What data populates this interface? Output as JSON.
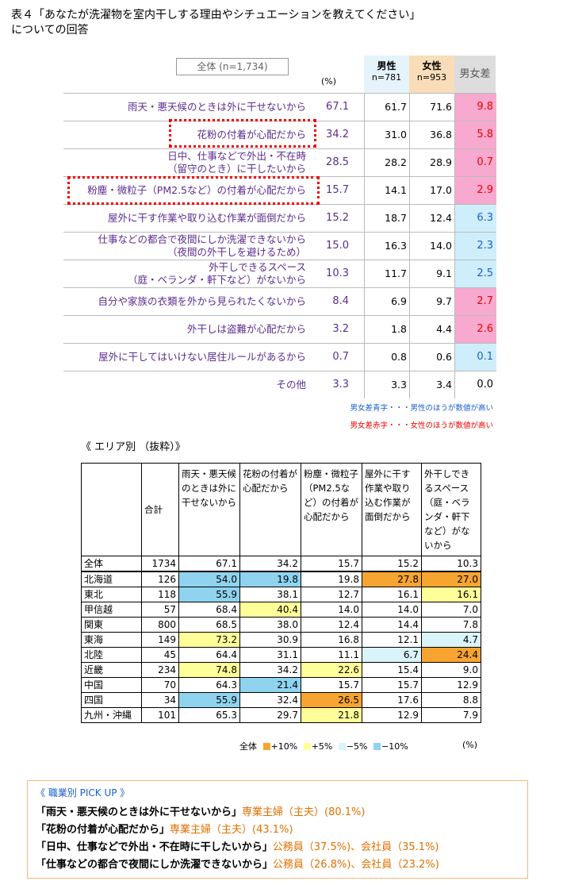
{
  "title_line1": "表４「あなたが洗濯物を室内干しする理由やシチュエーションを教えてください」",
  "title_line2": "についての回答",
  "table1": {
    "all_label": "全体 (n=1,734)",
    "pct_label": "(%)",
    "male_label": "男性",
    "male_n": "n=781",
    "female_label": "女性",
    "female_n": "n=953",
    "diff_label": "男女差",
    "rows": [
      {
        "l1": "雨天・悪天候のときは外に干せないから",
        "l2": "",
        "all": "67.1",
        "m": "61.7",
        "f": "71.6",
        "d": "9.8",
        "sign": "pos"
      },
      {
        "l1": "花粉の付着が心配だから",
        "l2": "",
        "all": "34.2",
        "m": "31.0",
        "f": "36.8",
        "d": "5.8",
        "sign": "pos"
      },
      {
        "l1": "日中、仕事などで外出・不在時",
        "l2": "（留守のとき）に干したいから",
        "all": "28.5",
        "m": "28.2",
        "f": "28.9",
        "d": "0.7",
        "sign": "pos"
      },
      {
        "l1": "粉塵・微粒子（PM2.5など）の付着が心配だから",
        "l2": "",
        "all": "15.7",
        "m": "14.1",
        "f": "17.0",
        "d": "2.9",
        "sign": "pos"
      },
      {
        "l1": "屋外に干す作業や取り込む作業が面倒だから",
        "l2": "",
        "all": "15.2",
        "m": "18.7",
        "f": "12.4",
        "d": "6.3",
        "sign": "neg"
      },
      {
        "l1": "仕事などの都合で夜間にしか洗濯できないから",
        "l2": "（夜間の外干しを避けるため）",
        "all": "15.0",
        "m": "16.3",
        "f": "14.0",
        "d": "2.3",
        "sign": "neg"
      },
      {
        "l1": "外干しできるスペース",
        "l2": "（庭・ベランダ・軒下など）がないから",
        "all": "10.3",
        "m": "11.7",
        "f": "9.1",
        "d": "2.5",
        "sign": "neg"
      },
      {
        "l1": "自分や家族の衣類を外から見られたくないから",
        "l2": "",
        "all": "8.4",
        "m": "6.9",
        "f": "9.7",
        "d": "2.7",
        "sign": "pos"
      },
      {
        "l1": "外干しは盗難が心配だから",
        "l2": "",
        "all": "3.2",
        "m": "1.8",
        "f": "4.4",
        "d": "2.6",
        "sign": "pos"
      },
      {
        "l1": "屋外に干してはいけない居住ルールがあるから",
        "l2": "",
        "all": "0.7",
        "m": "0.8",
        "f": "0.6",
        "d": "0.1",
        "sign": "neg"
      },
      {
        "l1": "その他",
        "l2": "",
        "all": "3.3",
        "m": "3.3",
        "f": "3.4",
        "d": "0.0",
        "sign": "zero"
      }
    ],
    "note_blue": "男女差青字・・・男性のほうが数値が高い",
    "note_red": "男女差赤字・・・女性のほうが数値が高い",
    "colors": {
      "pos_bg": "#f8a9cf",
      "pos_text": "#ee0000",
      "neg_bg": "#cfeefb",
      "neg_text": "#1a5fc9",
      "label_text": "#5b2d8e"
    }
  },
  "area_title": "《 エリア別 （抜粋）》",
  "table2": {
    "headers": [
      "合計",
      "雨天・悪天候のときは外に干せないから",
      "花粉の付着が心配だから",
      "粉塵・微粒子（PM2.5など）の付着が心配だから",
      "屋外に干す作業や取り込む作業が面倒だから",
      "外干しできるスペース（庭・ベランダ・軒下など）がないから"
    ],
    "rows": [
      {
        "name": "全体",
        "vals": [
          "1734",
          "67.1",
          "34.2",
          "15.7",
          "15.2",
          "10.3"
        ],
        "cls": [
          "",
          "",
          "",
          "",
          "",
          ""
        ]
      },
      {
        "name": "北海道",
        "vals": [
          "126",
          "54.0",
          "19.8",
          "19.8",
          "27.8",
          "27.0"
        ],
        "cls": [
          "",
          "blue",
          "blue",
          "",
          "org",
          "org"
        ]
      },
      {
        "name": "東北",
        "vals": [
          "118",
          "55.9",
          "38.1",
          "12.7",
          "16.1",
          "16.1"
        ],
        "cls": [
          "",
          "blue",
          "",
          "",
          "",
          "yel"
        ]
      },
      {
        "name": "甲信越",
        "vals": [
          "57",
          "68.4",
          "40.4",
          "14.0",
          "14.0",
          "7.0"
        ],
        "cls": [
          "",
          "",
          "yel",
          "",
          "",
          ""
        ]
      },
      {
        "name": "関東",
        "vals": [
          "800",
          "68.5",
          "38.0",
          "12.4",
          "14.4",
          "7.8"
        ],
        "cls": [
          "",
          "",
          "",
          "",
          "",
          ""
        ]
      },
      {
        "name": "東海",
        "vals": [
          "149",
          "73.2",
          "30.9",
          "16.8",
          "12.1",
          "4.7"
        ],
        "cls": [
          "",
          "yel",
          "",
          "",
          "",
          "lb"
        ]
      },
      {
        "name": "北陸",
        "vals": [
          "45",
          "64.4",
          "31.1",
          "11.1",
          "6.7",
          "24.4"
        ],
        "cls": [
          "",
          "",
          "",
          "",
          "lb",
          "org"
        ]
      },
      {
        "name": "近畿",
        "vals": [
          "234",
          "74.8",
          "34.2",
          "22.6",
          "15.4",
          "9.0"
        ],
        "cls": [
          "",
          "yel",
          "",
          "yel",
          "",
          ""
        ]
      },
      {
        "name": "中国",
        "vals": [
          "70",
          "64.3",
          "21.4",
          "15.7",
          "15.7",
          "12.9"
        ],
        "cls": [
          "",
          "",
          "blue",
          "",
          "",
          ""
        ]
      },
      {
        "name": "四国",
        "vals": [
          "34",
          "55.9",
          "32.4",
          "26.5",
          "17.6",
          "8.8"
        ],
        "cls": [
          "",
          "blue",
          "",
          "org",
          "",
          ""
        ]
      },
      {
        "name": "九州・沖縄",
        "vals": [
          "101",
          "65.3",
          "29.7",
          "21.8",
          "12.9",
          "7.9"
        ],
        "cls": [
          "",
          "",
          "",
          "yel",
          "",
          ""
        ]
      }
    ],
    "legend": {
      "prefix": "全体",
      "plus10": "+10%",
      "plus5": "+5%",
      "minus5": "−5%",
      "minus10": "−10%",
      "unit": "(%)"
    },
    "colors": {
      "blue": "#8fd3ef",
      "yel": "#ffff99",
      "org": "#f7a431",
      "lb": "#d9f4fb"
    }
  },
  "pickup": {
    "title": "《 職業別 PICK UP 》",
    "lines": [
      {
        "q": "「雨天・悪天候のときは外に干せないから」",
        "a": "専業主婦（主夫）",
        "p": "(80.1%)"
      },
      {
        "q": "「花粉の付着が心配だから」",
        "a": "専業主婦（主夫）",
        "p": "(43.1%)"
      },
      {
        "q": "「日中、仕事などで外出・不在時に干したいから」",
        "a": "公務員",
        "p": "（37.5%)、会社員（35.1%)"
      },
      {
        "q": "「仕事などの都合で夜間にしか洗濯できないから」",
        "a": "公務員",
        "p": "（26.8%)、会社員（23.2%)"
      }
    ]
  }
}
